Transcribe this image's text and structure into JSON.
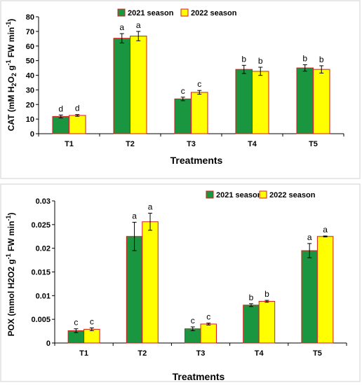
{
  "chart_data": [
    {
      "type": "bar",
      "categories": [
        "T1",
        "T2",
        "T3",
        "T4",
        "T5"
      ],
      "xlabel": "Treatments",
      "ylabel": "CAT (mM H2O2 g-1 FW min-1)",
      "ylim": [
        0,
        80
      ],
      "yticks": [
        0,
        10,
        20,
        30,
        40,
        50,
        60,
        70,
        80
      ],
      "grid": false,
      "legend_position": "top-center",
      "series": [
        {
          "name": "2021 season",
          "color": "#1a9641",
          "values": [
            11.8,
            65.3,
            23.8,
            44.0,
            45.0
          ],
          "errors": [
            1.0,
            3.2,
            1.2,
            2.8,
            2.2
          ],
          "labels": [
            "d",
            "a",
            "c",
            "b",
            "b"
          ]
        },
        {
          "name": "2022 season",
          "color": "#ffff00",
          "values": [
            12.5,
            66.8,
            28.3,
            42.7,
            44.0
          ],
          "errors": [
            0.6,
            3.2,
            1.3,
            2.8,
            2.5
          ],
          "labels": [
            "d",
            "a",
            "c",
            "b",
            "b"
          ]
        }
      ]
    },
    {
      "type": "bar",
      "categories": [
        "T1",
        "T2",
        "T3",
        "T4",
        "T5"
      ],
      "xlabel": "Treatments",
      "ylabel": "POX  (mmol H2O2 g-1 FW min-1)",
      "ylim": [
        0,
        0.03
      ],
      "yticks": [
        "0",
        "0.005",
        "0.01",
        "0.015",
        "0.02",
        "0.025",
        "0.03"
      ],
      "grid": false,
      "legend_position": "top-right",
      "series": [
        {
          "name": "2021 season",
          "color": "#1a9641",
          "values": [
            0.0026,
            0.0225,
            0.003,
            0.008,
            0.0195
          ],
          "errors": [
            0.0004,
            0.003,
            0.0004,
            0.0003,
            0.0015
          ],
          "labels": [
            "c",
            "a",
            "c",
            "b",
            "a"
          ]
        },
        {
          "name": "2022 season",
          "color": "#ffff00",
          "values": [
            0.0029,
            0.0256,
            0.004,
            0.0088,
            0.0225
          ],
          "errors": [
            0.0003,
            0.0018,
            0.0002,
            0.0002,
            0.0001
          ],
          "labels": [
            "c",
            "a",
            "c",
            "b",
            "a"
          ]
        }
      ]
    }
  ]
}
